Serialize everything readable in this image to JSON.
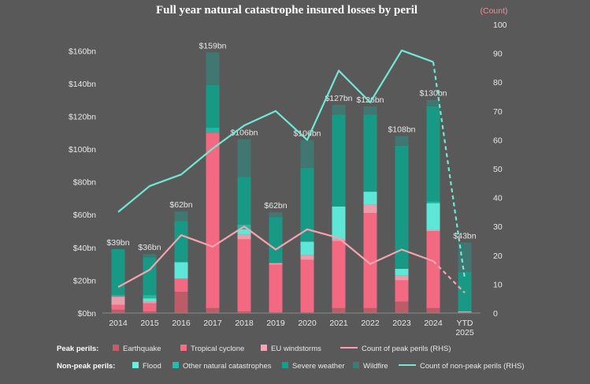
{
  "chart_data": {
    "type": "bar",
    "title": "Full year natural catastrophe insured losses by peril",
    "y2_unit_label": "(Count)",
    "categories": [
      "2014",
      "2015",
      "2016",
      "2017",
      "2018",
      "2019",
      "2020",
      "2021",
      "2022",
      "2023",
      "2024",
      "YTD 2025"
    ],
    "ylim": [
      0,
      170
    ],
    "y_ticks": [
      "$0bn",
      "$20bn",
      "$40bn",
      "$60bn",
      "$80bn",
      "$100bn",
      "$120bn",
      "$140bn",
      "$160bn"
    ],
    "y2lim": [
      0,
      100
    ],
    "y2_ticks": [
      "0",
      "10",
      "20",
      "30",
      "40",
      "50",
      "60",
      "70",
      "80",
      "90",
      "100"
    ],
    "totals_labels": [
      "$39bn",
      "$36bn",
      "$62bn",
      "$159bn",
      "$106bn",
      "$62bn",
      "$106bn",
      "$127bn",
      "$126bn",
      "$108bn",
      "$130bn",
      "$43bn"
    ],
    "stacked_series": [
      {
        "name": "Earthquake",
        "color": "#c45c6a",
        "values": [
          2,
          1,
          13,
          3,
          1,
          0.5,
          0.5,
          3,
          3,
          7,
          3,
          0.5
        ]
      },
      {
        "name": "Tropical cyclone",
        "color": "#ff6b85",
        "values": [
          3,
          5,
          8,
          107,
          44,
          29,
          32,
          41,
          58,
          13,
          47,
          0
        ]
      },
      {
        "name": "EU windstorms",
        "color": "#f7a3b3",
        "values": [
          5,
          1,
          0,
          0,
          3,
          1,
          3,
          1,
          5,
          3,
          1,
          0
        ]
      },
      {
        "name": "Flood",
        "color": "#5ff2e0",
        "values": [
          0,
          2,
          10,
          0,
          3,
          0,
          8,
          20,
          8,
          4,
          16,
          0.5
        ]
      },
      {
        "name": "Other natural catastrophes",
        "color": "#1dbfa5",
        "values": [
          1,
          2,
          0,
          3,
          3,
          0,
          0,
          0,
          0,
          0,
          1,
          0
        ]
      },
      {
        "name": "Severe weather",
        "color": "#139e8a",
        "values": [
          28,
          23,
          25,
          26,
          29,
          28,
          45,
          56,
          47,
          75,
          58,
          24
        ]
      },
      {
        "name": "Wildfire",
        "color": "#3e7a72",
        "values": [
          0,
          2,
          6,
          20,
          23,
          3,
          17,
          6,
          5,
          6,
          4,
          18
        ]
      }
    ],
    "line_series": [
      {
        "name": "Count of peak perils (RHS)",
        "color": "#f4a3b1",
        "values": [
          9,
          15,
          27,
          23,
          30,
          22,
          29,
          26,
          17,
          22,
          18,
          7
        ],
        "dashed_last_segment": true
      },
      {
        "name": "Count of non-peak perils (RHS)",
        "color": "#6fe8d4",
        "values": [
          35,
          44,
          48,
          57,
          65,
          70,
          60,
          84,
          73,
          91,
          87,
          12
        ],
        "dashed_last_segment": true
      }
    ],
    "legend": {
      "peak_heading": "Peak perils:",
      "peak_items": [
        "Earthquake",
        "Tropical cyclone",
        "EU windstorms",
        "Count of peak perils (RHS)"
      ],
      "nonpeak_heading": "Non-peak perils:",
      "nonpeak_items": [
        "Flood",
        "Other natural catastrophes",
        "Severe weather",
        "Wildfire",
        "Count of non-peak perils (RHS)"
      ]
    }
  }
}
